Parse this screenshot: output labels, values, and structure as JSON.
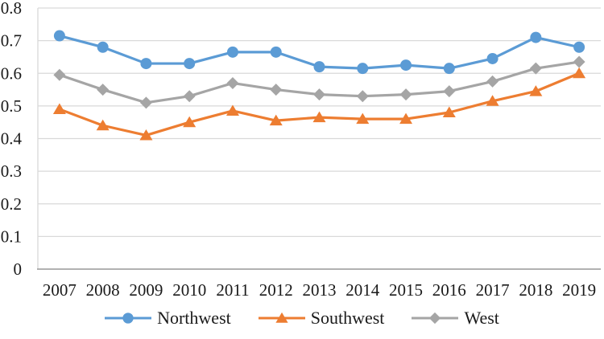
{
  "chart_data": {
    "type": "line",
    "title": "",
    "xlabel": "",
    "ylabel": "",
    "categories": [
      "2007",
      "2008",
      "2009",
      "2010",
      "2011",
      "2012",
      "2013",
      "2014",
      "2015",
      "2016",
      "2017",
      "2018",
      "2019"
    ],
    "series": [
      {
        "name": "Northwest",
        "color": "#5B9BD5",
        "marker": "circle",
        "values": [
          0.715,
          0.68,
          0.63,
          0.63,
          0.665,
          0.665,
          0.62,
          0.615,
          0.625,
          0.615,
          0.645,
          0.71,
          0.68
        ]
      },
      {
        "name": "Southwest",
        "color": "#ED7D31",
        "marker": "triangle",
        "values": [
          0.49,
          0.44,
          0.41,
          0.45,
          0.485,
          0.455,
          0.465,
          0.46,
          0.46,
          0.48,
          0.515,
          0.545,
          0.6
        ]
      },
      {
        "name": "West",
        "color": "#A5A5A5",
        "marker": "diamond",
        "values": [
          0.595,
          0.55,
          0.51,
          0.53,
          0.57,
          0.55,
          0.535,
          0.53,
          0.535,
          0.545,
          0.575,
          0.615,
          0.635
        ]
      }
    ],
    "ylim": [
      0,
      0.8
    ],
    "y_ticks": [
      0,
      0.1,
      0.2,
      0.3,
      0.4,
      0.5,
      0.6,
      0.7,
      0.8
    ],
    "y_tick_labels": [
      "0",
      "0.1",
      "0.2",
      "0.3",
      "0.4",
      "0.5",
      "0.6",
      "0.7",
      "0.8"
    ],
    "grid": "horizontal",
    "legend_position": "bottom",
    "colors": {
      "gridline": "#D9D9D9",
      "axis_line": "#A6A6A6",
      "plot_border": "#D9D9D9",
      "text": "#1a1a1a",
      "background": "#ffffff"
    }
  }
}
